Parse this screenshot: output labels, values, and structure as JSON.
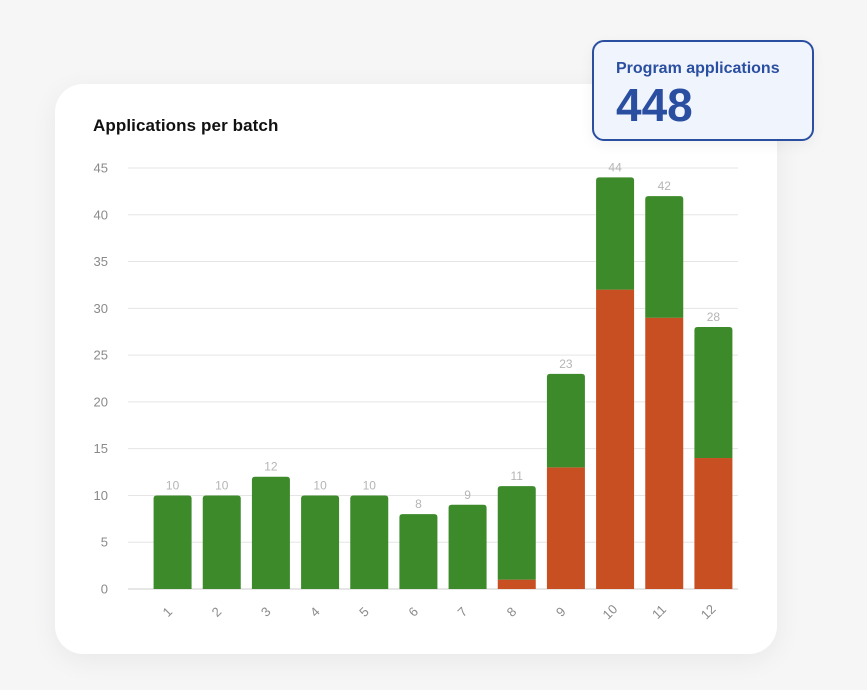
{
  "colors": {
    "series_green": "#3d8a2b",
    "series_orange": "#c84f22",
    "grid": "#e5e5e5",
    "accent": "#2a4fa0"
  },
  "stat": {
    "label": "Program applications",
    "value": "448"
  },
  "chart_data": {
    "type": "bar",
    "stacked": true,
    "title": "Applications per batch",
    "xlabel": "",
    "ylabel": "",
    "categories": [
      "1",
      "2",
      "3",
      "4",
      "5",
      "6",
      "7",
      "8",
      "9",
      "10",
      "11",
      "12"
    ],
    "series": [
      {
        "color": "#c84f22",
        "values": [
          0,
          0,
          0,
          0,
          0,
          0,
          0,
          1,
          13,
          32,
          29,
          14
        ]
      },
      {
        "color": "#3d8a2b",
        "values": [
          10,
          10,
          12,
          10,
          10,
          8,
          9,
          10,
          10,
          12,
          13,
          14
        ]
      }
    ],
    "totals": [
      10,
      10,
      12,
      10,
      10,
      8,
      9,
      11,
      23,
      44,
      42,
      28
    ],
    "ylim": [
      0,
      45
    ],
    "yticks": [
      0,
      5,
      10,
      15,
      20,
      25,
      30,
      35,
      40,
      45
    ],
    "grid": true,
    "legend": "none"
  }
}
